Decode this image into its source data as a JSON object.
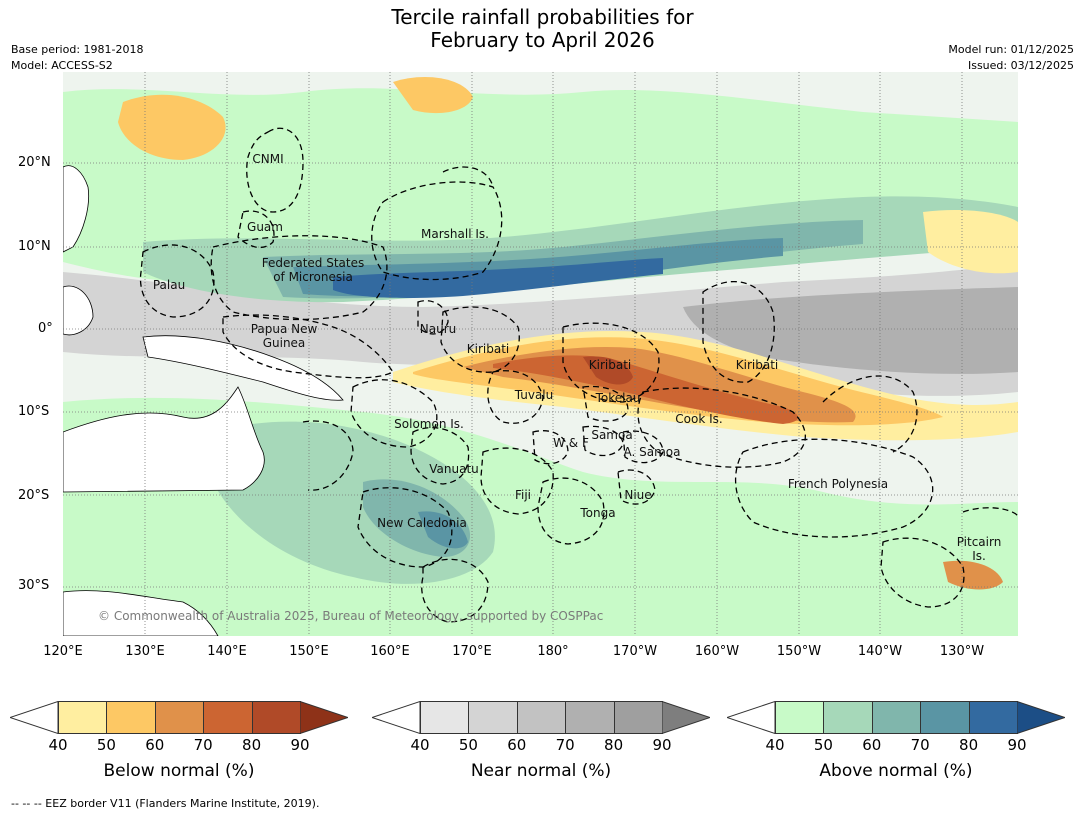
{
  "title_line1": "Tercile rainfall probabilities for",
  "title_line2": "February to April 2026",
  "base_period": "Base period: 1981-2018",
  "model": "Model: ACCESS-S2",
  "model_run": "Model run: 01/12/2025",
  "issued": "Issued: 03/12/2025",
  "lat_ticks": [
    "20°N",
    "10°N",
    "0°",
    "10°S",
    "20°S",
    "30°S"
  ],
  "lon_ticks": [
    "120°E",
    "130°E",
    "140°E",
    "150°E",
    "160°E",
    "170°E",
    "180°",
    "170°W",
    "160°W",
    "150°W",
    "140°W",
    "130°W"
  ],
  "regions": {
    "cnmi": "CNMI",
    "guam": "Guam",
    "marshall": "Marshall Is.",
    "fsm_1": "Federated States",
    "fsm_2": "of Micronesia",
    "palau": "Palau",
    "png_1": "Papua New",
    "png_2": "Guinea",
    "nauru": "Nauru",
    "kiribati_west": "Kiribati",
    "kiribati_central": "Kiribati",
    "kiribati_east": "Kiribati",
    "tuvalu": "Tuvalu",
    "tokelau": "Tokelau",
    "solomon": "Solomon Is.",
    "wallis": "W & F",
    "samoa": "Samoa",
    "american_samoa": "A. Samoa",
    "cook": "Cook Is.",
    "vanuatu": "Vanuatu",
    "fiji": "Fiji",
    "niue": "Niue",
    "tonga": "Tonga",
    "french_polynesia": "French Polynesia",
    "new_caledonia": "New Caledonia",
    "pitcairn_1": "Pitcairn",
    "pitcairn_2": "Is."
  },
  "copyright": "© Commonwealth of Australia 2025, Bureau of Meteorology, supported by COSPPac",
  "colorbars": [
    {
      "title": "Below normal (%)",
      "ticks": [
        "40",
        "50",
        "60",
        "70",
        "80",
        "90"
      ],
      "colors": [
        "#ffeea0",
        "#fdc864",
        "#e0914a",
        "#cc6532",
        "#b04a28"
      ],
      "under_color": "#ffffff",
      "over_color": "#8e3218"
    },
    {
      "title": "Near normal (%)",
      "ticks": [
        "40",
        "50",
        "60",
        "70",
        "80",
        "90"
      ],
      "colors": [
        "#e6e6e6",
        "#d4d4d4",
        "#c2c2c2",
        "#b0b0b0",
        "#9f9f9f"
      ],
      "under_color": "#ffffff",
      "over_color": "#7e7e7e"
    },
    {
      "title": "Above normal (%)",
      "ticks": [
        "40",
        "50",
        "60",
        "70",
        "80",
        "90"
      ],
      "colors": [
        "#c8fac8",
        "#a6d8b9",
        "#80b6ac",
        "#5a95a4",
        "#336aa0"
      ],
      "under_color": "#ffffff",
      "over_color": "#1c4e86"
    }
  ],
  "footer": "-- -- -- EEZ border V11 (Flanders Marine Institute, 2019)."
}
